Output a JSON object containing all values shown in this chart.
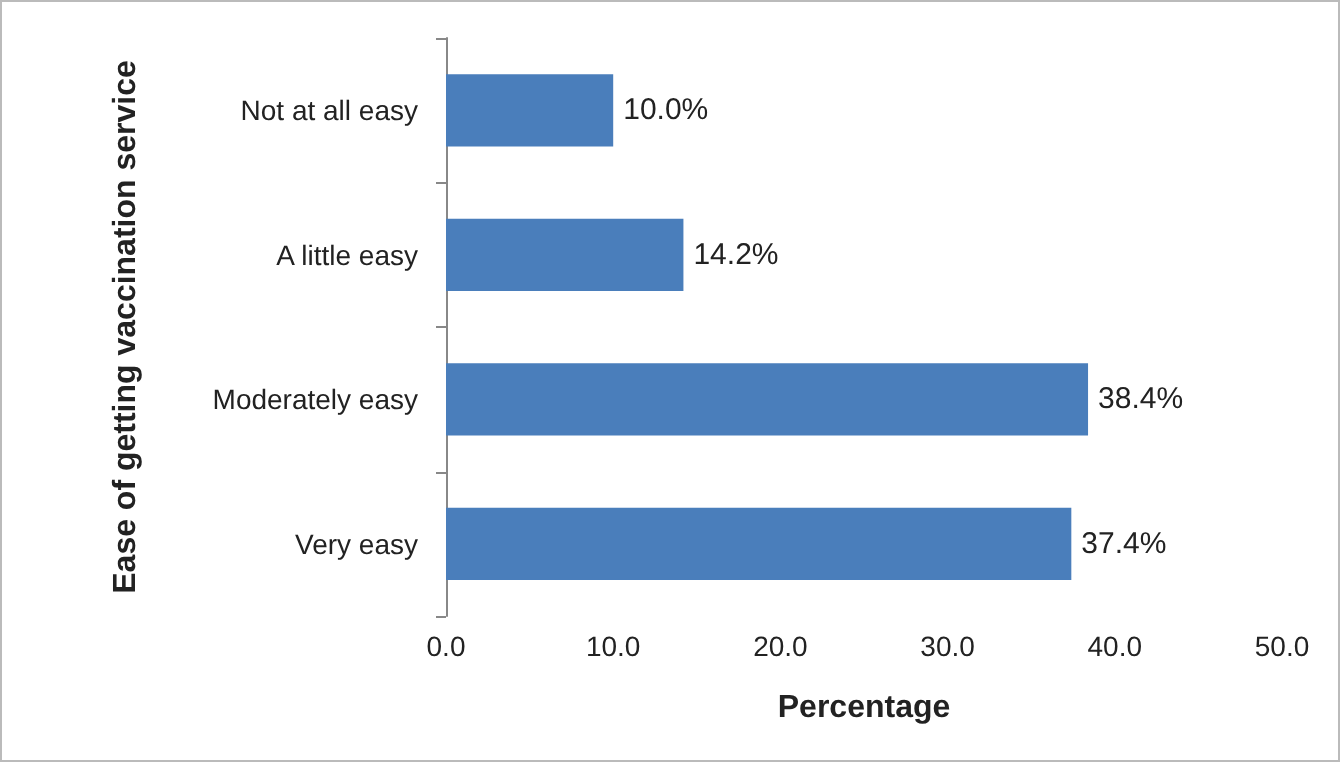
{
  "chart_data": {
    "type": "bar",
    "orientation": "horizontal",
    "xlabel": "Percentage",
    "ylabel": "Ease of getting vaccination service",
    "categories": [
      "Not at all easy",
      "A little easy",
      "Moderately easy",
      "Very easy"
    ],
    "values": [
      10.0,
      14.2,
      38.4,
      37.4
    ],
    "value_labels": [
      "10.0%",
      "14.2%",
      "38.4%",
      "37.4%"
    ],
    "color": "#4a7ebb",
    "xlim": [
      0,
      50
    ],
    "xticks": [
      {
        "value": 0,
        "label": "0.0"
      },
      {
        "value": 10,
        "label": "10.0"
      },
      {
        "value": 20,
        "label": "20.0"
      },
      {
        "value": 30,
        "label": "30.0"
      },
      {
        "value": 40,
        "label": "40.0"
      },
      {
        "value": 50,
        "label": "50.0"
      }
    ],
    "grid": false
  }
}
